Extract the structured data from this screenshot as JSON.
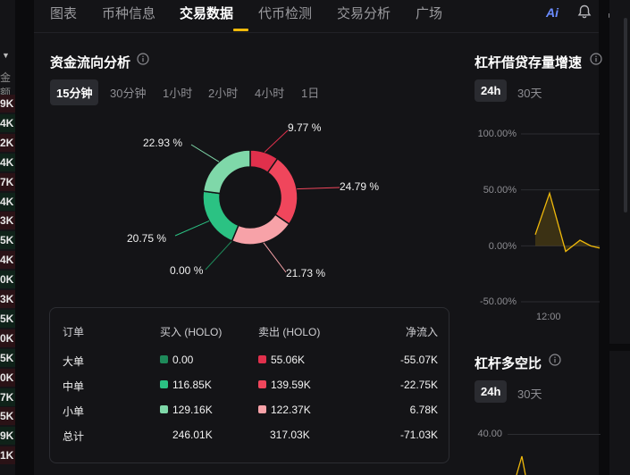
{
  "tabs": [
    {
      "label": "图表",
      "active": false
    },
    {
      "label": "币种信息",
      "active": false
    },
    {
      "label": "交易数据",
      "active": true
    },
    {
      "label": "代币检测",
      "active": false
    },
    {
      "label": "交易分析",
      "active": false
    },
    {
      "label": "广场",
      "active": false
    }
  ],
  "header_icons": {
    "ai_label": "Ai"
  },
  "left_column": {
    "header": "金额",
    "values": [
      "9K",
      "4K",
      "2K",
      "4K",
      "7K",
      "4K",
      "3K",
      "5K",
      "4K",
      "0K",
      "3K",
      "5K",
      "0K",
      "5K",
      "0K",
      "7K",
      "5K",
      "9K",
      "1K"
    ]
  },
  "fund_flow": {
    "title": "资金流向分析",
    "periods": [
      "15分钟",
      "30分钟",
      "1小时",
      "2小时",
      "4小时",
      "1日"
    ],
    "active_period": "15分钟",
    "donut": [
      {
        "label": "9.77 %",
        "value": 9.77,
        "color": "#e0304c"
      },
      {
        "label": "24.79 %",
        "value": 24.79,
        "color": "#f0465c"
      },
      {
        "label": "21.73 %",
        "value": 21.73,
        "color": "#f7a2a8"
      },
      {
        "label": "0.00 %",
        "value": 0.0,
        "color": "#1e8a5a"
      },
      {
        "label": "20.75 %",
        "value": 20.75,
        "color": "#2bc283"
      },
      {
        "label": "22.93 %",
        "value": 22.93,
        "color": "#7fd8a9"
      }
    ],
    "table": {
      "headers": {
        "order": "订单",
        "buy": "买入 (HOLO)",
        "sell": "卖出 (HOLO)",
        "net": "净流入"
      },
      "rows": [
        {
          "label": "大单",
          "buy": "0.00",
          "sell": "55.06K",
          "net": "-55.07K",
          "buy_color": "#1e8a5a",
          "sell_color": "#e0304c"
        },
        {
          "label": "中单",
          "buy": "116.85K",
          "sell": "139.59K",
          "net": "-22.75K",
          "buy_color": "#2bc283",
          "sell_color": "#f0465c"
        },
        {
          "label": "小单",
          "buy": "129.16K",
          "sell": "122.37K",
          "net": "6.78K",
          "buy_color": "#7fd8a9",
          "sell_color": "#f7a2a8"
        }
      ],
      "total": {
        "label": "总计",
        "buy": "246.01K",
        "sell": "317.03K",
        "net": "-71.03K"
      }
    }
  },
  "leverage_growth": {
    "title": "杠杆借贷存量增速",
    "periods": [
      "24h",
      "30天"
    ],
    "active_period": "24h",
    "chart_data": {
      "type": "line",
      "ylim": [
        -50,
        100
      ],
      "y_ticks": [
        "100.00%",
        "50.00%",
        "0.00%",
        "-50.00%"
      ],
      "x_tick": "12:00",
      "values": [
        10,
        47,
        -5,
        5,
        0,
        -2
      ],
      "color": "#f0b90b"
    }
  },
  "long_short": {
    "title": "杠杆多空比",
    "periods": [
      "24h",
      "30天"
    ],
    "active_period": "24h",
    "y_tick": "40.00"
  }
}
